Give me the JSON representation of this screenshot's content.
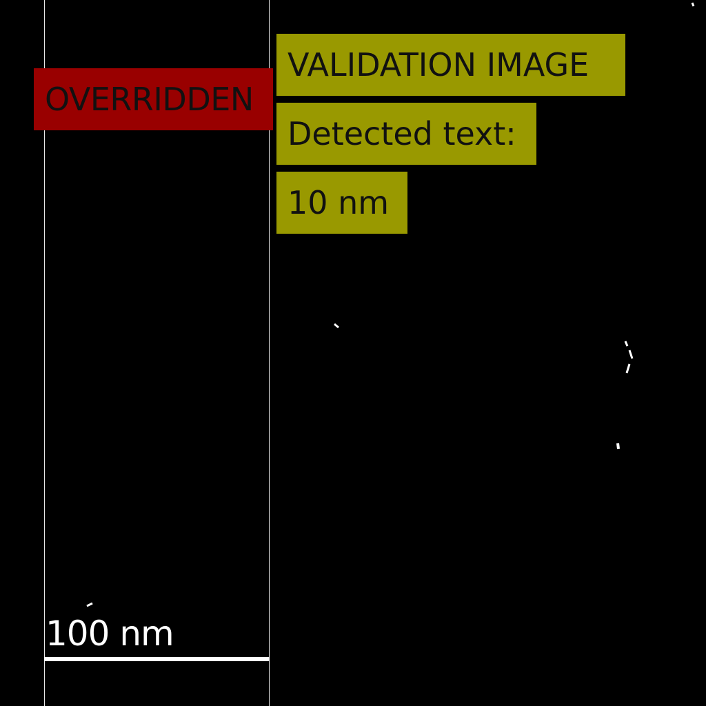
{
  "colors": {
    "background": "#000000",
    "overridden_box": "#990000",
    "detection_box": "#999900",
    "guide_line": "#e8e8e8",
    "scale_bar": "#ffffff",
    "text": "#111111"
  },
  "labels": {
    "overridden": "OVERRIDDEN",
    "validation": "VALIDATION IMAGE",
    "detected_heading": "Detected text:",
    "detected_value": "10 nm"
  },
  "scale_bar": {
    "label": "100 nm"
  }
}
